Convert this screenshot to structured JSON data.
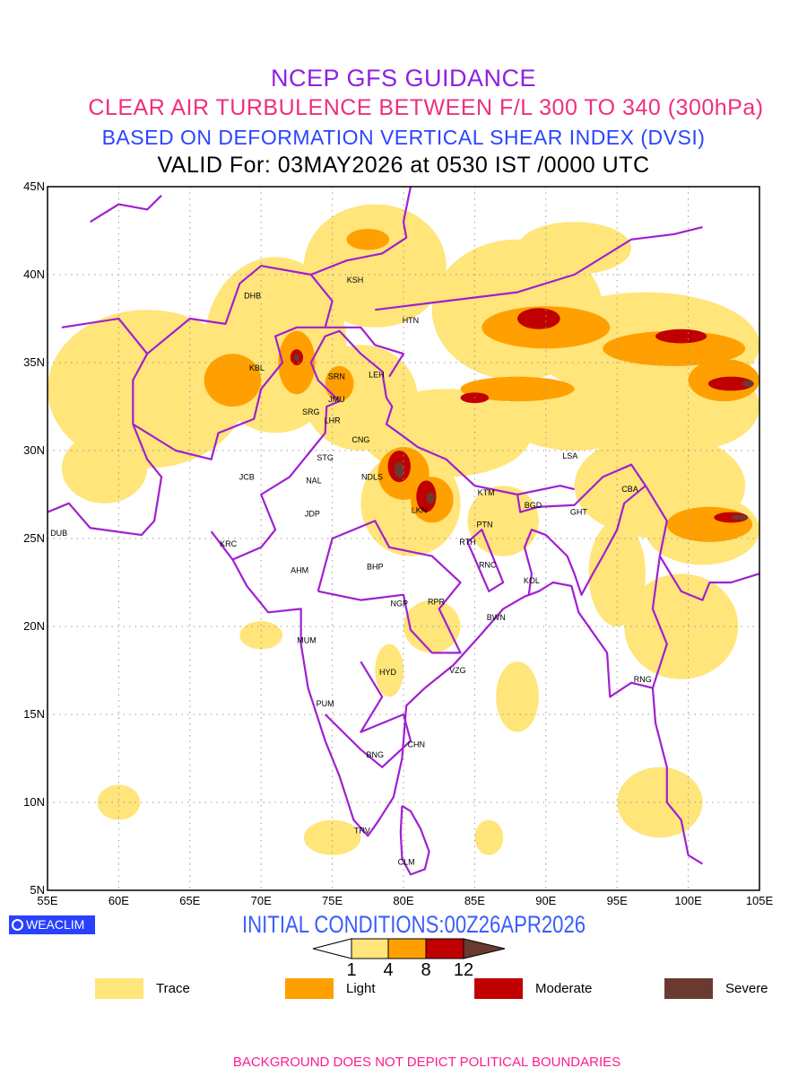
{
  "header": {
    "line1": "NCEP GFS GUIDANCE",
    "line2": "CLEAR AIR TURBULENCE BETWEEN F/L 300 TO 340 (300hPa)",
    "line3": "BASED ON DEFORMATION VERTICAL SHEAR INDEX (DVSI)",
    "line4": "VALID For: 03MAY2026 at 0530 IST /0000 UTC"
  },
  "map": {
    "lon_range": [
      55,
      105
    ],
    "lat_range": [
      5,
      45
    ],
    "x_ticks": [
      "55E",
      "60E",
      "65E",
      "70E",
      "75E",
      "80E",
      "85E",
      "90E",
      "95E",
      "100E",
      "105E"
    ],
    "y_ticks": [
      "45N",
      "40N",
      "35N",
      "30N",
      "25N",
      "20N",
      "15N",
      "10N",
      "5N"
    ],
    "cities": [
      {
        "code": "KSH",
        "lon": 76.6,
        "lat": 39.7
      },
      {
        "code": "DHB",
        "lon": 69.4,
        "lat": 38.8
      },
      {
        "code": "HTN",
        "lon": 80.5,
        "lat": 37.4
      },
      {
        "code": "KBL",
        "lon": 69.7,
        "lat": 34.7
      },
      {
        "code": "SRN",
        "lon": 75.3,
        "lat": 34.2
      },
      {
        "code": "LEH",
        "lon": 78.1,
        "lat": 34.3
      },
      {
        "code": "JMU",
        "lon": 75.3,
        "lat": 32.9
      },
      {
        "code": "SRG",
        "lon": 73.5,
        "lat": 32.2
      },
      {
        "code": "LHR",
        "lon": 75.0,
        "lat": 31.7
      },
      {
        "code": "CNG",
        "lon": 77.0,
        "lat": 30.6
      },
      {
        "code": "STG",
        "lon": 74.5,
        "lat": 29.6
      },
      {
        "code": "JCB",
        "lon": 69.0,
        "lat": 28.5
      },
      {
        "code": "NAL",
        "lon": 73.7,
        "lat": 28.3
      },
      {
        "code": "NDLS",
        "lon": 77.8,
        "lat": 28.5
      },
      {
        "code": "LKN",
        "lon": 81.1,
        "lat": 26.6
      },
      {
        "code": "KTM",
        "lon": 85.8,
        "lat": 27.6
      },
      {
        "code": "LSA",
        "lon": 91.7,
        "lat": 29.7
      },
      {
        "code": "CBA",
        "lon": 95.9,
        "lat": 27.8
      },
      {
        "code": "BGD",
        "lon": 89.1,
        "lat": 26.9
      },
      {
        "code": "GHT",
        "lon": 92.3,
        "lat": 26.5
      },
      {
        "code": "JDP",
        "lon": 73.6,
        "lat": 26.4
      },
      {
        "code": "DUB",
        "lon": 55.8,
        "lat": 25.3
      },
      {
        "code": "PTN",
        "lon": 85.7,
        "lat": 25.8
      },
      {
        "code": "KRC",
        "lon": 67.7,
        "lat": 24.7
      },
      {
        "code": "RTH",
        "lon": 84.5,
        "lat": 24.8
      },
      {
        "code": "AHM",
        "lon": 72.7,
        "lat": 23.2
      },
      {
        "code": "BHP",
        "lon": 78.0,
        "lat": 23.4
      },
      {
        "code": "RNC",
        "lon": 85.9,
        "lat": 23.5
      },
      {
        "code": "KOL",
        "lon": 89.0,
        "lat": 22.6
      },
      {
        "code": "NGP",
        "lon": 79.7,
        "lat": 21.3
      },
      {
        "code": "RPR",
        "lon": 82.3,
        "lat": 21.4
      },
      {
        "code": "BWN",
        "lon": 86.5,
        "lat": 20.5
      },
      {
        "code": "MUM",
        "lon": 73.2,
        "lat": 19.2
      },
      {
        "code": "HYD",
        "lon": 78.9,
        "lat": 17.4
      },
      {
        "code": "VZG",
        "lon": 83.8,
        "lat": 17.5
      },
      {
        "code": "RNG",
        "lon": 96.8,
        "lat": 17.0
      },
      {
        "code": "PUM",
        "lon": 74.5,
        "lat": 15.6
      },
      {
        "code": "CHN",
        "lon": 80.9,
        "lat": 13.3
      },
      {
        "code": "BNG",
        "lon": 78.0,
        "lat": 12.7
      },
      {
        "code": "TRV",
        "lon": 77.1,
        "lat": 8.4
      },
      {
        "code": "CLM",
        "lon": 80.2,
        "lat": 6.6
      }
    ],
    "turbulence_areas": [
      {
        "level": "trace",
        "lon": 62,
        "lat": 33.5,
        "rlon": 7,
        "rlat": 4.5
      },
      {
        "level": "trace",
        "lon": 71,
        "lat": 36,
        "rlon": 5,
        "rlat": 5
      },
      {
        "level": "trace",
        "lon": 78,
        "lat": 40.5,
        "rlon": 5,
        "rlat": 3.5
      },
      {
        "level": "trace",
        "lon": 77,
        "lat": 33,
        "rlon": 4,
        "rlat": 3
      },
      {
        "level": "trace",
        "lon": 88,
        "lat": 38,
        "rlon": 6,
        "rlat": 4
      },
      {
        "level": "trace",
        "lon": 97,
        "lat": 36,
        "rlon": 8,
        "rlat": 3
      },
      {
        "level": "trace",
        "lon": 100,
        "lat": 32.5,
        "rlon": 5,
        "rlat": 2.5
      },
      {
        "level": "trace",
        "lon": 83,
        "lat": 31,
        "rlon": 6,
        "rlat": 2.5
      },
      {
        "level": "trace",
        "lon": 92,
        "lat": 32,
        "rlon": 5,
        "rlat": 2
      },
      {
        "level": "trace",
        "lon": 80.5,
        "lat": 27,
        "rlon": 3.5,
        "rlat": 3
      },
      {
        "level": "trace",
        "lon": 87,
        "lat": 26,
        "rlon": 2.5,
        "rlat": 2
      },
      {
        "level": "trace",
        "lon": 98,
        "lat": 28,
        "rlon": 6,
        "rlat": 3
      },
      {
        "level": "trace",
        "lon": 95,
        "lat": 23,
        "rlon": 2,
        "rlat": 3
      },
      {
        "level": "trace",
        "lon": 99.5,
        "lat": 20,
        "rlon": 4,
        "rlat": 3
      },
      {
        "level": "trace",
        "lon": 101,
        "lat": 25.5,
        "rlon": 4,
        "rlat": 2
      },
      {
        "level": "trace",
        "lon": 59,
        "lat": 29,
        "rlon": 3,
        "rlat": 2
      },
      {
        "level": "trace",
        "lon": 92,
        "lat": 41.5,
        "rlon": 4,
        "rlat": 1.5
      },
      {
        "level": "trace",
        "lon": 70,
        "lat": 19.5,
        "rlon": 1.5,
        "rlat": 0.8
      },
      {
        "level": "trace",
        "lon": 60,
        "lat": 10,
        "rlon": 1.5,
        "rlat": 1
      },
      {
        "level": "trace",
        "lon": 75,
        "lat": 8,
        "rlon": 2,
        "rlat": 1
      },
      {
        "level": "trace",
        "lon": 86,
        "lat": 8,
        "rlon": 1,
        "rlat": 1
      },
      {
        "level": "trace",
        "lon": 98,
        "lat": 10,
        "rlon": 3,
        "rlat": 2
      },
      {
        "level": "trace",
        "lon": 82,
        "lat": 20,
        "rlon": 2,
        "rlat": 1.5
      },
      {
        "level": "trace",
        "lon": 88,
        "lat": 16,
        "rlon": 1.5,
        "rlat": 2
      },
      {
        "level": "trace",
        "lon": 79,
        "lat": 17.5,
        "rlon": 1,
        "rlat": 1.5
      },
      {
        "level": "light",
        "lon": 68,
        "lat": 34,
        "rlon": 2,
        "rlat": 1.5
      },
      {
        "level": "light",
        "lon": 72.5,
        "lat": 35,
        "rlon": 1.3,
        "rlat": 1.8
      },
      {
        "level": "light",
        "lon": 75.5,
        "lat": 33.8,
        "rlon": 1,
        "rlat": 1
      },
      {
        "level": "light",
        "lon": 80,
        "lat": 28.7,
        "rlon": 1.8,
        "rlat": 1.5
      },
      {
        "level": "light",
        "lon": 82,
        "lat": 27.2,
        "rlon": 1.5,
        "rlat": 1.3
      },
      {
        "level": "light",
        "lon": 90,
        "lat": 37,
        "rlon": 4.5,
        "rlat": 1.2
      },
      {
        "level": "light",
        "lon": 99,
        "lat": 35.8,
        "rlon": 5,
        "rlat": 1
      },
      {
        "level": "light",
        "lon": 102.5,
        "lat": 34,
        "rlon": 2.5,
        "rlat": 1.2
      },
      {
        "level": "light",
        "lon": 101.5,
        "lat": 25.8,
        "rlon": 3,
        "rlat": 1
      },
      {
        "level": "light",
        "lon": 88,
        "lat": 33.5,
        "rlon": 4,
        "rlat": 0.7
      },
      {
        "level": "light",
        "lon": 77.5,
        "lat": 42,
        "rlon": 1.5,
        "rlat": 0.6
      },
      {
        "level": "moderate",
        "lon": 72.5,
        "lat": 35.3,
        "rlon": 0.45,
        "rlat": 0.45
      },
      {
        "level": "moderate",
        "lon": 79.7,
        "lat": 29.1,
        "rlon": 0.8,
        "rlat": 0.9
      },
      {
        "level": "moderate",
        "lon": 81.6,
        "lat": 27.4,
        "rlon": 0.7,
        "rlat": 0.9
      },
      {
        "level": "moderate",
        "lon": 89.5,
        "lat": 37.5,
        "rlon": 1.5,
        "rlat": 0.6
      },
      {
        "level": "moderate",
        "lon": 99.5,
        "lat": 36.5,
        "rlon": 1.8,
        "rlat": 0.4
      },
      {
        "level": "moderate",
        "lon": 103,
        "lat": 33.8,
        "rlon": 1.6,
        "rlat": 0.4
      },
      {
        "level": "moderate",
        "lon": 103,
        "lat": 26.2,
        "rlon": 1.2,
        "rlat": 0.3
      },
      {
        "level": "moderate",
        "lon": 85,
        "lat": 33,
        "rlon": 1,
        "rlat": 0.3
      },
      {
        "level": "severe",
        "lon": 72.5,
        "lat": 35.3,
        "rlon": 0.2,
        "rlat": 0.2
      },
      {
        "level": "severe",
        "lon": 79.7,
        "lat": 28.9,
        "rlon": 0.35,
        "rlat": 0.45
      },
      {
        "level": "severe",
        "lon": 81.9,
        "lat": 27.3,
        "rlon": 0.3,
        "rlat": 0.3
      },
      {
        "level": "severe",
        "lon": 103.6,
        "lat": 26.2,
        "rlon": 0.6,
        "rlat": 0.15
      },
      {
        "level": "severe",
        "lon": 104.2,
        "lat": 33.8,
        "rlon": 0.4,
        "rlat": 0.2
      }
    ]
  },
  "colors": {
    "trace": "#ffe57a",
    "light": "#ffa000",
    "moderate": "#c00000",
    "severe": "#6a3a30",
    "border": "#a020d0"
  },
  "branding": {
    "logo_text": "WEACLIM"
  },
  "initial_conditions": "INITIAL CONDITIONS:00Z26APR2026",
  "colorbar": {
    "thresholds": [
      "1",
      "4",
      "8",
      "12"
    ]
  },
  "legend": [
    {
      "label": "Trace",
      "level": "trace"
    },
    {
      "label": "Light",
      "level": "light"
    },
    {
      "label": "Moderate",
      "level": "moderate"
    },
    {
      "label": "Severe",
      "level": "severe"
    }
  ],
  "footer": "BACKGROUND DOES NOT DEPICT POLITICAL BOUNDARIES"
}
